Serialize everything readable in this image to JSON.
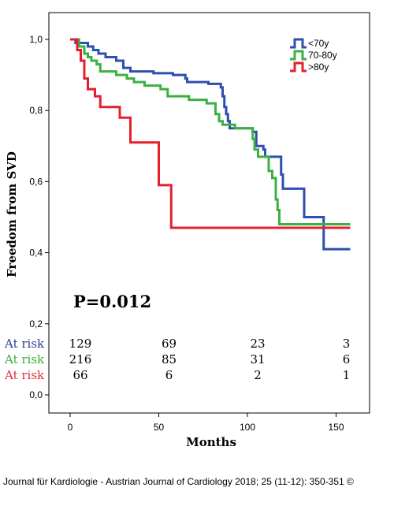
{
  "chart_data": {
    "type": "line",
    "step": true,
    "xlabel": "Months",
    "ylabel": "Freedom from SVD",
    "xlim": [
      -10,
      160
    ],
    "ylim": [
      -0.02,
      1.04
    ],
    "x_ticks": [
      0,
      50,
      100,
      150
    ],
    "x_tick_labels": [
      "0",
      "50",
      "100",
      "150"
    ],
    "y_ticks": [
      0.0,
      0.2,
      0.4,
      0.6,
      0.8,
      1.0
    ],
    "y_tick_labels": [
      "0,0",
      "0,2",
      "0,4",
      "0,6",
      "0,8",
      "1,0"
    ],
    "grid": false,
    "legend_position": "top-right",
    "annotation": "P=0.012",
    "series": [
      {
        "name": "<70y",
        "color": "#2e4fb0",
        "points": [
          [
            0,
            1.0
          ],
          [
            3,
            0.99
          ],
          [
            10,
            0.98
          ],
          [
            13,
            0.97
          ],
          [
            16,
            0.96
          ],
          [
            20,
            0.95
          ],
          [
            26,
            0.94
          ],
          [
            30,
            0.92
          ],
          [
            34,
            0.91
          ],
          [
            47,
            0.905
          ],
          [
            58,
            0.9
          ],
          [
            65,
            0.89
          ],
          [
            66,
            0.88
          ],
          [
            78,
            0.875
          ],
          [
            85,
            0.865
          ],
          [
            86,
            0.84
          ],
          [
            87,
            0.81
          ],
          [
            88,
            0.79
          ],
          [
            89,
            0.77
          ],
          [
            90,
            0.75
          ],
          [
            103,
            0.74
          ],
          [
            105,
            0.7
          ],
          [
            109,
            0.69
          ],
          [
            110,
            0.67
          ],
          [
            119,
            0.62
          ],
          [
            120,
            0.58
          ],
          [
            132,
            0.5
          ],
          [
            143,
            0.48
          ],
          [
            143,
            0.41
          ],
          [
            158,
            0.41
          ]
        ]
      },
      {
        "name": "70-80y",
        "color": "#3cb043",
        "points": [
          [
            0,
            1.0
          ],
          [
            5,
            0.98
          ],
          [
            8,
            0.96
          ],
          [
            10,
            0.95
          ],
          [
            12,
            0.94
          ],
          [
            15,
            0.93
          ],
          [
            17,
            0.91
          ],
          [
            26,
            0.9
          ],
          [
            32,
            0.89
          ],
          [
            36,
            0.88
          ],
          [
            42,
            0.87
          ],
          [
            51,
            0.86
          ],
          [
            55,
            0.84
          ],
          [
            67,
            0.83
          ],
          [
            77,
            0.82
          ],
          [
            82,
            0.79
          ],
          [
            84,
            0.77
          ],
          [
            86,
            0.76
          ],
          [
            93,
            0.75
          ],
          [
            103,
            0.72
          ],
          [
            104,
            0.69
          ],
          [
            106,
            0.67
          ],
          [
            112,
            0.63
          ],
          [
            114,
            0.61
          ],
          [
            116,
            0.55
          ],
          [
            117,
            0.52
          ],
          [
            118,
            0.48
          ],
          [
            158,
            0.48
          ]
        ]
      },
      {
        "name": ">80y",
        "color": "#e4202f",
        "points": [
          [
            0,
            1.0
          ],
          [
            4,
            0.97
          ],
          [
            6,
            0.94
          ],
          [
            8,
            0.89
          ],
          [
            10,
            0.86
          ],
          [
            14,
            0.84
          ],
          [
            17,
            0.81
          ],
          [
            28,
            0.78
          ],
          [
            34,
            0.71
          ],
          [
            50,
            0.59
          ],
          [
            57,
            0.47
          ],
          [
            158,
            0.47
          ]
        ]
      }
    ]
  },
  "risk_table": {
    "label": "At risk",
    "columns_months": [
      0,
      50,
      100,
      150
    ],
    "rows": [
      {
        "color": "#2e3e8f",
        "values": [
          "129",
          "69",
          "23",
          "3"
        ]
      },
      {
        "color": "#3fae3f",
        "values": [
          "216",
          "85",
          "31",
          "6"
        ]
      },
      {
        "color": "#e0303e",
        "values": [
          "66",
          "6",
          "2",
          "1"
        ]
      }
    ]
  },
  "source": "Journal für Kardiologie - Austrian Journal of Cardiology 2018; 25 (11-12): 350-351 ©"
}
